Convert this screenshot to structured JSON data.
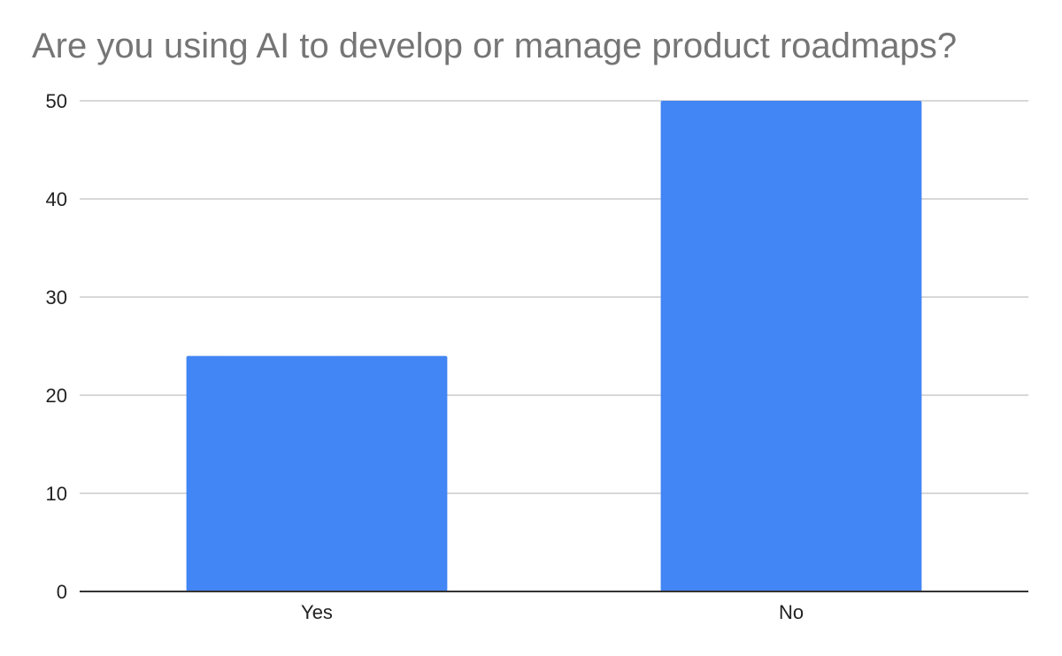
{
  "chart_data": {
    "type": "bar",
    "title": "Are you using AI to develop or manage product roadmaps?",
    "categories": [
      "Yes",
      "No"
    ],
    "values": [
      24,
      50
    ],
    "ylim": [
      0,
      50
    ],
    "yticks": [
      0,
      10,
      20,
      30,
      40,
      50
    ],
    "grid": true,
    "bar_color": "#4285F4",
    "legend": "none"
  }
}
